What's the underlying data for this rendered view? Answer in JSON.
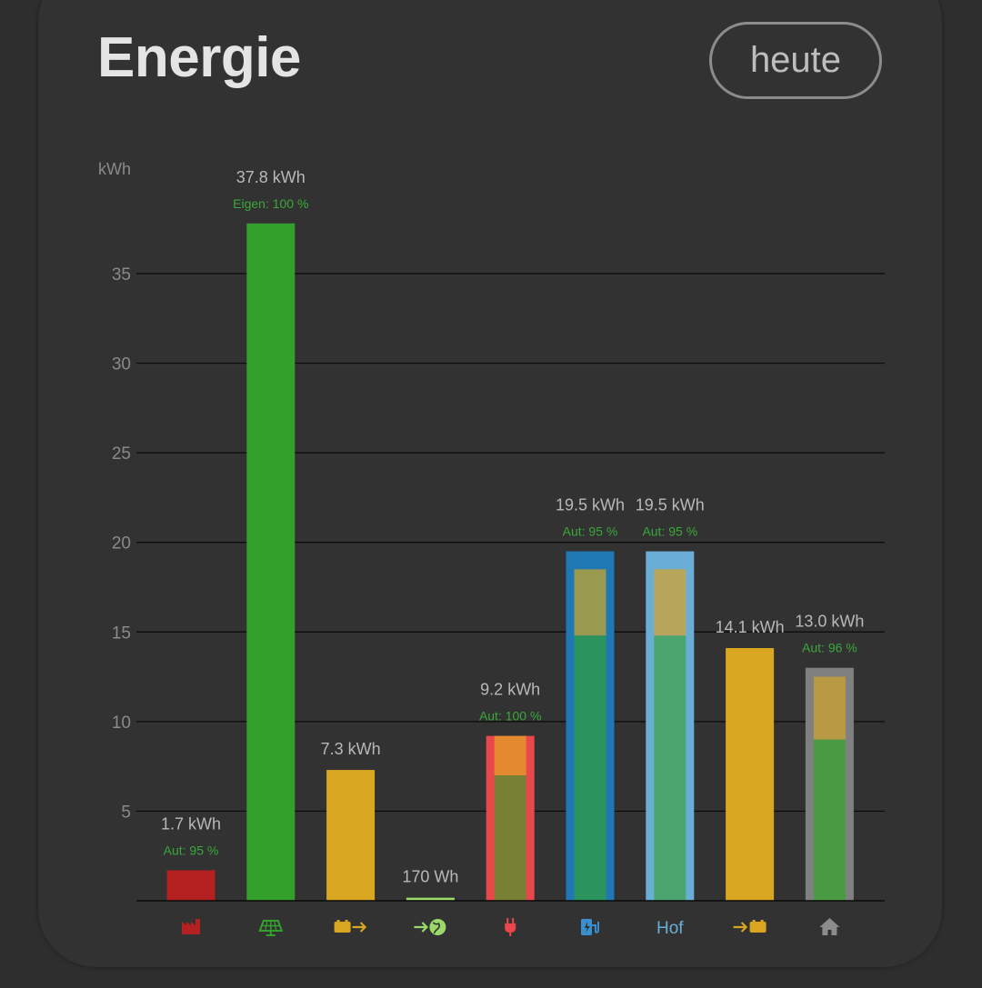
{
  "header": {
    "title": "Energie",
    "period_label": "heute"
  },
  "colors": {
    "background": "#323232",
    "grid": "#0a0a0a",
    "tick": "#8a8a8a",
    "value_label": "#b8b8b8",
    "sub_label": "#3aa83a"
  },
  "chart_data": {
    "type": "bar",
    "ylabel": "kWh",
    "ylim": [
      0,
      40
    ],
    "yticks": [
      5,
      10,
      15,
      20,
      25,
      30,
      35
    ],
    "grid": true,
    "categories": [
      {
        "icon": "factory-icon",
        "label": "",
        "value": 1.7,
        "value_label": "1.7 kWh",
        "sub_label": "Aut: 95 %",
        "color": "#b52020",
        "segments": []
      },
      {
        "icon": "solar-panel-icon",
        "label": "",
        "value": 37.8,
        "value_label": "37.8 kWh",
        "sub_label": "Eigen: 100 %",
        "color": "#33a02c",
        "segments": []
      },
      {
        "icon": "battery-discharge-icon",
        "label": "",
        "value": 7.3,
        "value_label": "7.3 kWh",
        "sub_label": "",
        "color": "#d9a621",
        "segments": []
      },
      {
        "icon": "grid-export-icon",
        "label": "",
        "value": 0.17,
        "value_label": "170 Wh",
        "sub_label": "",
        "color": "#9ad96a",
        "segments": []
      },
      {
        "icon": "plug-icon",
        "label": "",
        "value": 9.2,
        "value_label": "9.2 kWh",
        "sub_label": "Aut: 100 %",
        "color": "#e8474c",
        "segments": [
          {
            "from": 0,
            "to": 7.0,
            "color": "#778035"
          },
          {
            "from": 7.0,
            "to": 9.2,
            "color": "#e38a30"
          }
        ]
      },
      {
        "icon": "ev-charger-icon",
        "label": "",
        "value": 19.5,
        "value_label": "19.5 kWh",
        "sub_label": "Aut: 95 %",
        "color": "#1f78b4",
        "segments": [
          {
            "from": 0,
            "to": 14.8,
            "color": "#2a935e"
          },
          {
            "from": 14.8,
            "to": 18.5,
            "color": "#9a9a50"
          }
        ]
      },
      {
        "icon": "",
        "label": "Hof",
        "value": 19.5,
        "value_label": "19.5 kWh",
        "sub_label": "Aut: 95 %",
        "color": "#6aaed6",
        "segments": [
          {
            "from": 0,
            "to": 14.8,
            "color": "#4aa56e"
          },
          {
            "from": 14.8,
            "to": 18.5,
            "color": "#b8a75a"
          }
        ]
      },
      {
        "icon": "battery-charge-icon",
        "label": "",
        "value": 14.1,
        "value_label": "14.1 kWh",
        "sub_label": "",
        "color": "#d9a621",
        "segments": []
      },
      {
        "icon": "home-icon",
        "label": "",
        "value": 13.0,
        "value_label": "13.0 kWh",
        "sub_label": "Aut: 96 %",
        "color": "#808080",
        "segments": [
          {
            "from": 0,
            "to": 9.0,
            "color": "#4a9a44"
          },
          {
            "from": 9.0,
            "to": 12.5,
            "color": "#b89a45"
          }
        ]
      }
    ]
  }
}
